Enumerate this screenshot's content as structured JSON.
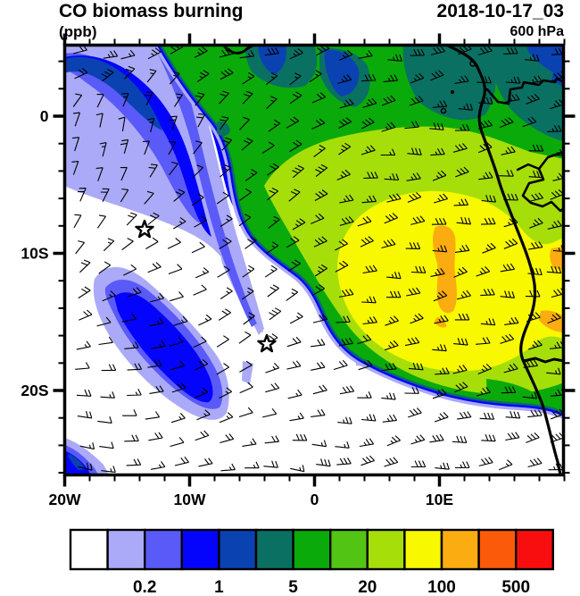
{
  "header": {
    "title": "CO biomass burning",
    "units_label": "(ppb)",
    "datetime": "2018-10-17_03",
    "level": "600 hPa"
  },
  "axes": {
    "lat_tick_labels": [
      "0",
      "10S",
      "20S"
    ],
    "lon_tick_labels": [
      "20W",
      "10W",
      "0",
      "10E"
    ]
  },
  "colorbar": {
    "tick_labels": [
      "0.2",
      "1",
      "5",
      "20",
      "100",
      "500"
    ],
    "colors": [
      "#ffffff",
      "#abaaf8",
      "#5a5af8",
      "#0404fc",
      "#0a42b2",
      "#0a7062",
      "#0aaa0a",
      "#52c414",
      "#a6de0a",
      "#f8f800",
      "#fbac10",
      "#fa5a0a",
      "#f80e0e"
    ]
  },
  "chart_data": {
    "type": "heatmap",
    "variable": "CO biomass burning",
    "units": "ppb",
    "level": "600 hPa",
    "valid_time": "2018-10-17_03",
    "extent": {
      "lon": [
        -20,
        20
      ],
      "lat": [
        -26,
        5
      ]
    },
    "contour_levels": [
      0.1,
      0.2,
      0.5,
      1,
      2,
      5,
      10,
      20,
      50,
      100,
      200,
      500
    ],
    "labeled_levels": [
      0.2,
      1,
      5,
      20,
      100,
      500
    ],
    "palette": [
      "#ffffff",
      "#abaaf8",
      "#5a5af8",
      "#0404fc",
      "#0a42b2",
      "#0a7062",
      "#0aaa0a",
      "#52c414",
      "#a6de0a",
      "#f8f800",
      "#fbac10",
      "#fa5a0a",
      "#f80e0e"
    ],
    "legend_position": "bottom",
    "overlays": {
      "wind_barbs": {
        "level": "600 hPa",
        "pattern": "easterlies over land, anticyclonic turning (from N to NE to E) over the South Atlantic",
        "grid_spacing_px": 27
      },
      "coastline": "West/Central African coast from Gulf of Guinea south through Angola to Namibia, with country borders",
      "stars": [
        {
          "lon_lat": "13.6W, 8.3S"
        },
        {
          "lon_lat": "3.7W, 16.7S"
        }
      ]
    },
    "features": [
      "Large biomass-burning CO plume (20-500+ ppb) over Congo/Angola and the eastern Gulf of Guinea, core 100-500 ppb (orange) near 15E, 10-12S",
      "Teal/dark-blue patches (1-5 ppb transitions) along the northern map edge near the equator",
      "Filament of 0.5-2 ppb CO (blue/violet band) stretching SE from the NW corner over the Atlantic",
      "Detached 1-2 ppb blue blob near 13W, 14S; clean air (<0.1 ppb, white) over the subtropical South Atlantic",
      "Small 0.5-2 ppb patch at the SW corner of the domain"
    ]
  }
}
